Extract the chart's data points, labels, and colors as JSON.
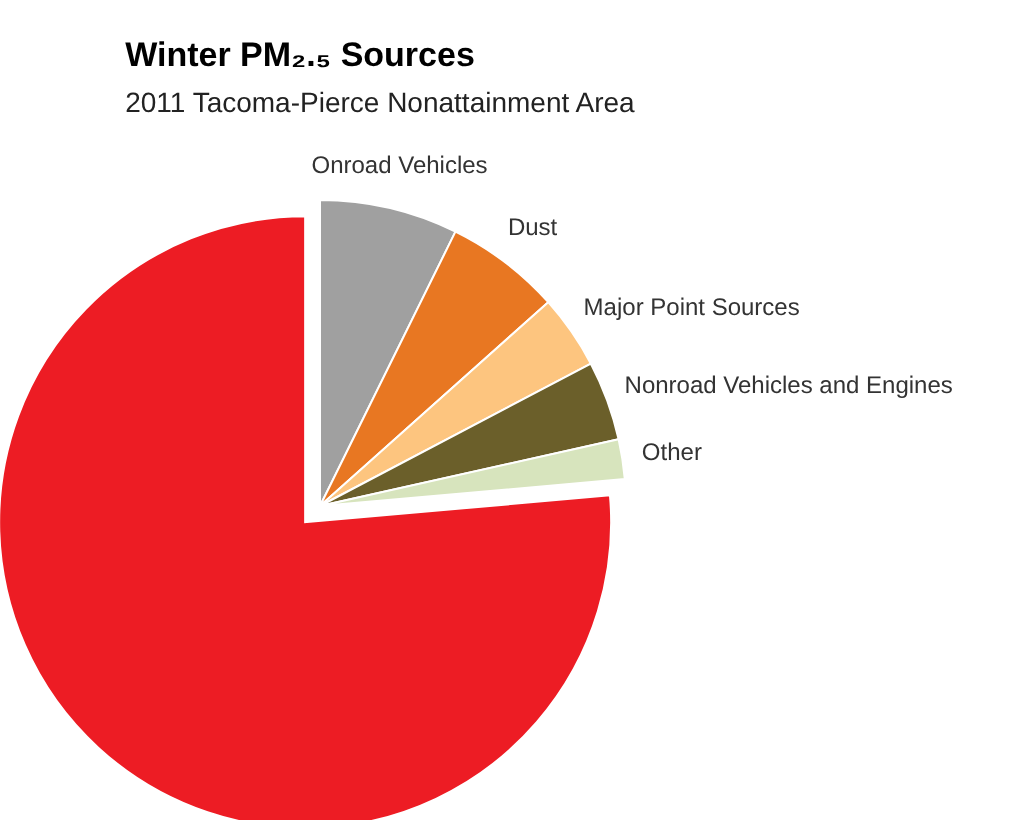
{
  "chart_data": {
    "type": "pie",
    "title": "Winter PM₂.₅ Sources",
    "subtitle": "2011 Tacoma-Pierce Nonattainment Area",
    "categories": [
      "Onroad Vehicles",
      "Dust",
      "Major Point Sources",
      "Nonroad Vehicles and Engines",
      "Other",
      null
    ],
    "values": [
      7.3,
      6.1,
      3.9,
      4.2,
      2.1,
      76.4
    ],
    "colors": [
      "#a0a0a0",
      "#e87722",
      "#fdc57f",
      "#6b5f2a",
      "#d7e4bd",
      "#ed1c24"
    ]
  }
}
